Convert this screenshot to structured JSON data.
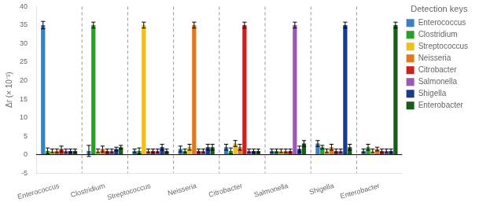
{
  "chart_data": {
    "type": "bar",
    "categories": [
      "Enterococcus",
      "Clostridium",
      "Streptococcus",
      "Neisseria",
      "Citrobacter",
      "Salmonella",
      "Shigella",
      "Enterobacter"
    ],
    "series": [
      {
        "name": "Enterococcus",
        "color": "#3b7fc4",
        "values": [
          35,
          1.0,
          1.0,
          1.5,
          2.0,
          1.0,
          3.0,
          1.0
        ],
        "errors": [
          1.0,
          1.5,
          0.5,
          0.8,
          0.8,
          0.5,
          0.8,
          0.5
        ]
      },
      {
        "name": "Clostridium",
        "color": "#2a9d2a",
        "values": [
          1.0,
          35,
          1.0,
          1.0,
          1.0,
          1.0,
          2.0,
          2.0
        ],
        "errors": [
          0.8,
          0.8,
          0.8,
          0.5,
          0.8,
          0.5,
          0.5,
          0.8
        ]
      },
      {
        "name": "Streptococcus",
        "color": "#f0c020",
        "values": [
          1.0,
          1.0,
          35,
          2.0,
          3.0,
          1.0,
          1.0,
          1.0
        ],
        "errors": [
          0.5,
          0.5,
          0.8,
          0.8,
          0.8,
          0.5,
          0.5,
          0.5
        ]
      },
      {
        "name": "Neisseria",
        "color": "#e07820",
        "values": [
          1.0,
          1.5,
          1.0,
          35,
          2.0,
          1.0,
          2.0,
          1.5
        ],
        "errors": [
          0.5,
          0.8,
          0.5,
          0.8,
          0.8,
          0.5,
          0.8,
          0.5
        ]
      },
      {
        "name": "Citrobacter",
        "color": "#cc2020",
        "values": [
          1.5,
          1.0,
          1.0,
          1.0,
          35,
          1.0,
          1.0,
          1.0
        ],
        "errors": [
          0.8,
          0.5,
          0.5,
          0.5,
          0.8,
          0.5,
          0.5,
          0.5
        ]
      },
      {
        "name": "Salmonella",
        "color": "#9b59b6",
        "values": [
          1.0,
          1.0,
          1.0,
          1.0,
          1.0,
          35,
          1.0,
          1.0
        ],
        "errors": [
          0.5,
          0.5,
          0.5,
          0.5,
          0.5,
          0.8,
          0.5,
          0.5
        ]
      },
      {
        "name": "Shigella",
        "color": "#1a3a8a",
        "values": [
          1.0,
          1.5,
          2.0,
          2.0,
          1.0,
          1.5,
          35,
          1.0
        ],
        "errors": [
          0.5,
          0.5,
          0.8,
          0.8,
          0.5,
          0.8,
          0.8,
          0.5
        ]
      },
      {
        "name": "Enterobacter",
        "color": "#1a5c1a",
        "values": [
          1.0,
          2.0,
          1.0,
          2.0,
          1.0,
          3.0,
          2.0,
          35
        ],
        "errors": [
          0.5,
          0.5,
          0.5,
          0.8,
          0.5,
          0.8,
          0.8,
          0.8
        ]
      }
    ],
    "ylabel": "Δr (× 10⁻³)",
    "legend_title": "Detection keys",
    "ylim": [
      -5,
      40
    ],
    "yticks": [
      -5,
      0,
      5,
      10,
      15,
      20,
      25,
      30,
      35,
      40
    ],
    "grid": false,
    "legend": "right"
  }
}
